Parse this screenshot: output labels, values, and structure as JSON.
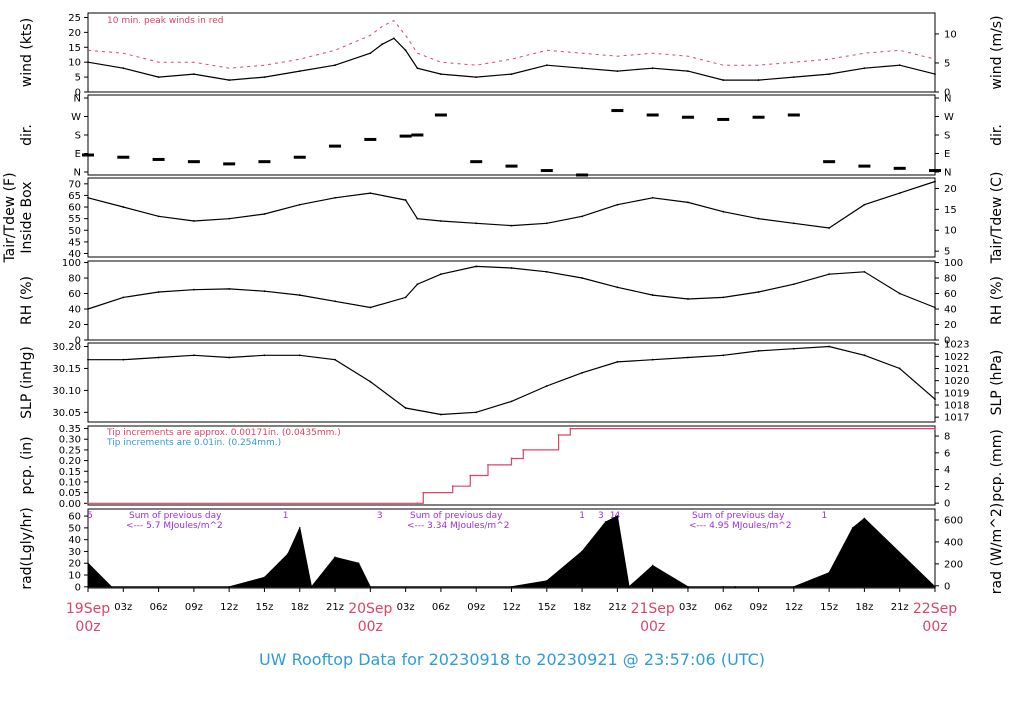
{
  "title": "UW Rooftop Data for 20230918  to  20230921 @ 23:57:06  (UTC)",
  "colors": {
    "accent": "#dd4466",
    "title": "#2f9cd8",
    "purple": "#9b30d8",
    "blue": "#2f9cd8",
    "trace": "#000000"
  },
  "time_axis": {
    "hour_labels": [
      "03z",
      "06z",
      "09z",
      "12z",
      "15z",
      "18z",
      "21z"
    ],
    "days": [
      {
        "date": "19Sep",
        "hour": "00z"
      },
      {
        "date": "20Sep",
        "hour": "00z"
      },
      {
        "date": "21Sep",
        "hour": "00z"
      },
      {
        "date": "22Sep",
        "hour": "00z"
      }
    ]
  },
  "panels": [
    {
      "id": "wind",
      "left_label": "wind (kts)",
      "right_label": "wind (m/s)",
      "left_ticks": [
        "0",
        "5",
        "10",
        "15",
        "20",
        "25"
      ],
      "right_ticks": [
        "0",
        "5",
        "10"
      ],
      "note": "10 min. peak winds in red"
    },
    {
      "id": "dir",
      "left_label": "dir.",
      "right_label": "dir.",
      "left_ticks": [
        "N",
        "E",
        "S",
        "W",
        "N"
      ],
      "right_ticks": [
        "N",
        "E",
        "S",
        "W",
        "N"
      ]
    },
    {
      "id": "temp",
      "left_label": "Tair/Tdew (F)",
      "left_label2": "Inside Box",
      "right_label": "Tair/Tdew (C)",
      "left_ticks": [
        "40",
        "45",
        "50",
        "55",
        "60",
        "65",
        "70"
      ],
      "right_ticks": [
        "5",
        "10",
        "15",
        "20"
      ]
    },
    {
      "id": "rh",
      "left_label": "RH (%)",
      "right_label": "RH (%)",
      "left_ticks": [
        "0",
        "20",
        "40",
        "60",
        "80",
        "100"
      ],
      "right_ticks": [
        "0",
        "20",
        "40",
        "60",
        "80",
        "100"
      ]
    },
    {
      "id": "slp",
      "left_label": "SLP (inHg)",
      "right_label": "SLP (hPa)",
      "left_ticks": [
        "30.05",
        "30.10",
        "30.15",
        "30.20"
      ],
      "right_ticks": [
        "1017",
        "1018",
        "1019",
        "1020",
        "1021",
        "1022",
        "1023"
      ]
    },
    {
      "id": "pcp",
      "left_label": "pcp. (in)",
      "right_label": "pcp. (mm)",
      "left_ticks": [
        "0.00",
        "0.05",
        "0.10",
        "0.15",
        "0.20",
        "0.25",
        "0.30",
        "0.35"
      ],
      "right_ticks": [
        "0",
        "2",
        "4",
        "6",
        "8"
      ],
      "note1": "Tip increments are approx. 0.00171in. (0.0435mm.)",
      "note2": "Tip increments are 0.01in. (0.254mm.)"
    },
    {
      "id": "rad",
      "left_label": "rad(Lgly/hr)",
      "right_label": "rad (W/m^2)",
      "left_ticks": [
        "0",
        "10",
        "20",
        "30",
        "40",
        "50",
        "60"
      ],
      "right_ticks": [
        "0",
        "200",
        "400",
        "600"
      ],
      "markers": [
        "5",
        "1",
        "3",
        "3",
        "1",
        "3",
        "1",
        "4",
        "1"
      ],
      "sums": [
        {
          "line1": "Sum of previous day",
          "line2": "<--- 5.7 MJoules/m^2"
        },
        {
          "line1": "Sum of previous day",
          "line2": "<--- 3.34 MJoules/m^2"
        },
        {
          "line1": "Sum of previous day",
          "line2": "<--- 4.95 MJoules/m^2"
        }
      ]
    }
  ],
  "chart_data": {
    "type": "line",
    "x_unit": "hours since 2023-09-19 00z",
    "x_range": [
      0,
      72
    ],
    "series": [
      {
        "panel": "wind",
        "name": "wind (kts)",
        "x": [
          0,
          3,
          6,
          9,
          12,
          15,
          18,
          21,
          24,
          25,
          26,
          27,
          28,
          30,
          33,
          36,
          39,
          42,
          45,
          48,
          51,
          54,
          57,
          60,
          63,
          66,
          69,
          72
        ],
        "values": [
          10,
          8,
          5,
          6,
          4,
          5,
          7,
          9,
          13,
          16,
          18,
          14,
          8,
          6,
          5,
          6,
          9,
          8,
          7,
          8,
          7,
          4,
          4,
          5,
          6,
          8,
          9,
          6
        ]
      },
      {
        "panel": "wind",
        "name": "10 min. peak winds",
        "x": [
          0,
          3,
          6,
          9,
          12,
          15,
          18,
          21,
          24,
          25,
          26,
          27,
          28,
          30,
          33,
          36,
          39,
          42,
          45,
          48,
          51,
          54,
          57,
          60,
          63,
          66,
          69,
          72
        ],
        "values": [
          14,
          13,
          10,
          10,
          8,
          9,
          11,
          14,
          19,
          22,
          24,
          19,
          13,
          10,
          9,
          11,
          14,
          13,
          12,
          13,
          12,
          9,
          9,
          10,
          11,
          13,
          14,
          11
        ]
      },
      {
        "panel": "dir",
        "name": "dir.",
        "x": [
          0,
          3,
          6,
          9,
          12,
          15,
          18,
          21,
          24,
          27,
          28,
          30,
          33,
          36,
          39,
          42,
          45,
          48,
          51,
          54,
          57,
          60,
          63,
          66,
          69,
          72
        ],
        "values": [
          90,
          80,
          70,
          60,
          50,
          60,
          80,
          130,
          160,
          175,
          180,
          270,
          60,
          40,
          20,
          0,
          290,
          270,
          260,
          250,
          260,
          270,
          60,
          40,
          30,
          20
        ]
      },
      {
        "panel": "temp",
        "name": "Tair (F)",
        "x": [
          0,
          3,
          6,
          9,
          12,
          15,
          18,
          21,
          24,
          27,
          28,
          30,
          33,
          36,
          39,
          42,
          45,
          48,
          51,
          54,
          57,
          60,
          63,
          66,
          69,
          72
        ],
        "values": [
          64,
          60,
          56,
          54,
          55,
          57,
          61,
          64,
          66,
          63,
          55,
          54,
          53,
          52,
          53,
          56,
          61,
          64,
          62,
          58,
          55,
          53,
          51,
          61,
          66,
          71
        ]
      },
      {
        "panel": "rh",
        "name": "RH (%)",
        "x": [
          0,
          3,
          6,
          9,
          12,
          15,
          18,
          21,
          24,
          27,
          28,
          30,
          33,
          36,
          39,
          42,
          45,
          48,
          51,
          54,
          57,
          60,
          63,
          66,
          69,
          72
        ],
        "values": [
          40,
          55,
          62,
          65,
          66,
          63,
          58,
          50,
          42,
          55,
          72,
          85,
          95,
          93,
          88,
          80,
          68,
          58,
          53,
          55,
          62,
          72,
          85,
          88,
          60,
          42
        ]
      },
      {
        "panel": "slp",
        "name": "SLP (inHg)",
        "x": [
          0,
          3,
          6,
          9,
          12,
          15,
          18,
          21,
          24,
          27,
          30,
          33,
          36,
          39,
          42,
          45,
          48,
          51,
          54,
          57,
          60,
          63,
          66,
          69,
          72
        ],
        "values": [
          30.17,
          30.17,
          30.175,
          30.18,
          30.175,
          30.18,
          30.18,
          30.17,
          30.12,
          30.06,
          30.045,
          30.05,
          30.075,
          30.11,
          30.14,
          30.165,
          30.17,
          30.175,
          30.18,
          30.19,
          30.195,
          30.2,
          30.18,
          30.15,
          30.08
        ]
      },
      {
        "panel": "pcp",
        "name": "pcp. (in)",
        "x": [
          0,
          28,
          28.5,
          31,
          32.5,
          34,
          36,
          37,
          40,
          41,
          72
        ],
        "values": [
          0,
          0,
          0.05,
          0.08,
          0.13,
          0.18,
          0.21,
          0.25,
          0.32,
          0.35,
          0.35
        ]
      },
      {
        "panel": "rad",
        "name": "rad (Lgly/hr)",
        "x": [
          0,
          2,
          12,
          15,
          17,
          18,
          19,
          21,
          23,
          24,
          36,
          39,
          42,
          44,
          45,
          46,
          48,
          51,
          54,
          55,
          60,
          63,
          65,
          66,
          72
        ],
        "values": [
          20,
          0,
          0,
          8,
          28,
          50,
          0,
          25,
          20,
          0,
          0,
          5,
          30,
          55,
          60,
          0,
          18,
          0,
          0,
          0,
          0,
          12,
          50,
          58,
          0
        ]
      }
    ]
  }
}
